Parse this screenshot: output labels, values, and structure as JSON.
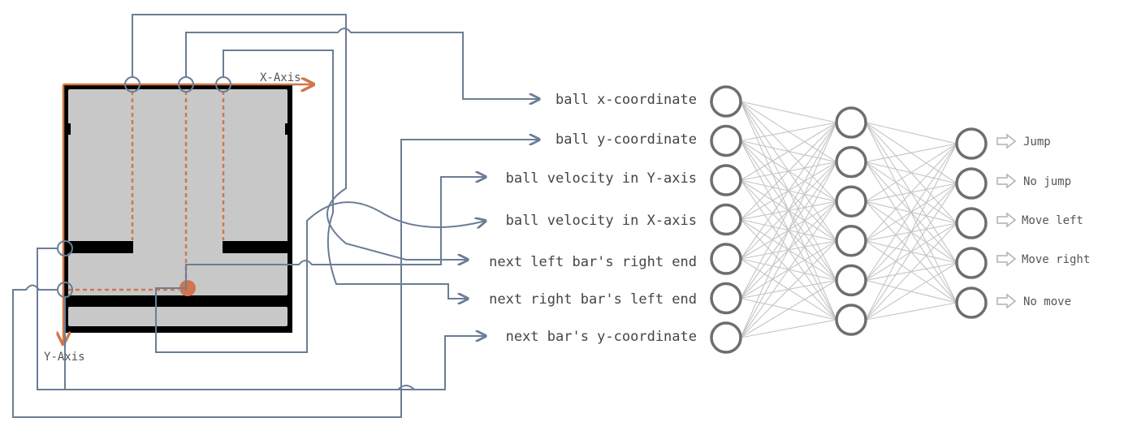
{
  "axes": {
    "x_label": "X-Axis",
    "y_label": "Y-Axis"
  },
  "inputs": [
    "ball x-coordinate",
    "ball y-coordinate",
    "ball velocity in Y-axis",
    "ball velocity in X-axis",
    "next left bar's right end",
    "next right bar's left end",
    "next bar's y-coordinate"
  ],
  "outputs": [
    "Jump",
    "No jump",
    "Move left",
    "Move right",
    "No move"
  ],
  "network": {
    "layer_sizes": [
      7,
      6,
      5
    ]
  },
  "colors": {
    "axis": "#d0774a",
    "wire": "#6b7d96",
    "node_stroke": "#6e6e6e",
    "connection": "#c4c4c4",
    "game_background": "#c8c8c8",
    "game_frame": "#000000",
    "ball": "#d0774a"
  }
}
